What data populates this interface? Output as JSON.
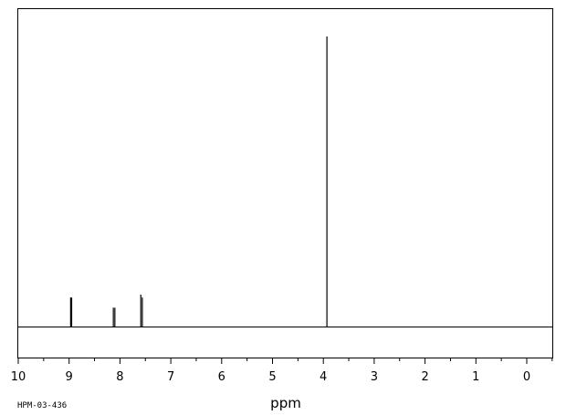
{
  "chart_data": {
    "type": "line",
    "xlabel": "ppm",
    "x_reversed": true,
    "xlim": [
      10.5,
      -0.5
    ],
    "x_ticks": [
      10,
      9,
      8,
      7,
      6,
      5,
      4,
      3,
      2,
      1,
      0
    ],
    "ylim": [
      0,
      1.0
    ],
    "grid": false,
    "series": [
      {
        "peaks": [
          {
            "ppm": 8.97,
            "intensity": 0.1
          },
          {
            "ppm": 8.95,
            "intensity": 0.1
          },
          {
            "ppm": 8.13,
            "intensity": 0.065
          },
          {
            "ppm": 8.1,
            "intensity": 0.065
          },
          {
            "ppm": 7.59,
            "intensity": 0.11
          },
          {
            "ppm": 7.56,
            "intensity": 0.1
          },
          {
            "ppm": 3.93,
            "intensity": 1.0
          }
        ]
      }
    ]
  },
  "sample_code": "HPM-03-436"
}
